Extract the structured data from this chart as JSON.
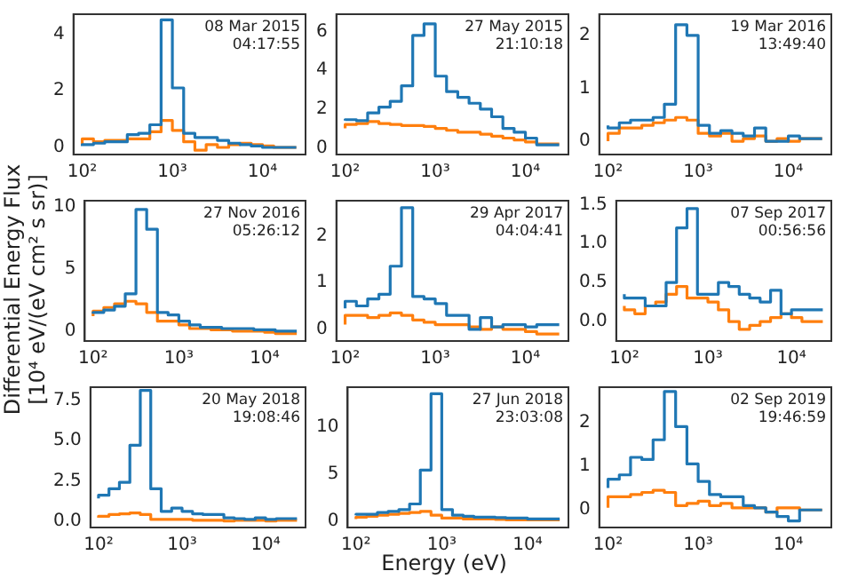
{
  "chart_data": [
    {
      "type": "step",
      "log": "x",
      "annotations": [
        "08 Mar 2015\n04:17:55"
      ],
      "x": [
        100,
        133.4,
        177.8,
        237.1,
        316.2,
        421.7,
        562.3,
        749.9,
        1000,
        1334,
        1778,
        2371,
        3162,
        4217,
        5623,
        7499,
        10000,
        13340,
        17780,
        23710
      ],
      "xlim": [
        80,
        30000
      ],
      "xticks": [
        {
          "value": 100,
          "label": "10²"
        },
        {
          "value": 1000,
          "label": "10³"
        },
        {
          "value": 10000,
          "label": "10⁴"
        }
      ],
      "ylim": [
        -0.25,
        4.7
      ],
      "yticks": [
        0,
        2,
        4
      ],
      "series": [
        {
          "color": "#1f77b4",
          "values": [
            0.05,
            0.1,
            0.15,
            0.2,
            0.2,
            0.45,
            0.5,
            0.8,
            4.5,
            2.1,
            0.5,
            0.35,
            0.35,
            0.25,
            0.15,
            0.1,
            0.05,
            0.0,
            0.0,
            0.0
          ]
        },
        {
          "color": "#ff7f0e",
          "values": [
            0.1,
            0.3,
            0.2,
            0.25,
            0.25,
            0.3,
            0.3,
            0.55,
            0.95,
            0.6,
            0.2,
            -0.1,
            0.1,
            0.0,
            0.1,
            0.15,
            0.1,
            0.05,
            0.0,
            0.0
          ]
        }
      ]
    },
    {
      "type": "step",
      "log": "x",
      "annotations": [
        "27 May 2015\n21:10:18"
      ],
      "x": [
        100,
        133.4,
        177.8,
        237.1,
        316.2,
        421.7,
        562.3,
        749.9,
        1000,
        1334,
        1778,
        2371,
        3162,
        4217,
        5623,
        7499,
        10000,
        13340,
        17780,
        23710
      ],
      "xlim": [
        80,
        30000
      ],
      "xticks": [
        {
          "value": 100,
          "label": "10²"
        },
        {
          "value": 1000,
          "label": "10³"
        },
        {
          "value": 10000,
          "label": "10⁴"
        }
      ],
      "ylim": [
        -0.35,
        6.9
      ],
      "yticks": [
        0,
        2,
        4,
        6
      ],
      "series": [
        {
          "color": "#1f77b4",
          "values": [
            1.4,
            1.45,
            1.4,
            1.8,
            2.1,
            2.4,
            3.2,
            5.8,
            6.4,
            3.7,
            2.9,
            2.6,
            2.3,
            2.0,
            1.6,
            1.0,
            0.8,
            0.5,
            0.15,
            0.15
          ]
        },
        {
          "color": "#ff7f0e",
          "values": [
            1.0,
            1.2,
            1.25,
            1.35,
            1.25,
            1.2,
            1.15,
            1.15,
            1.1,
            1.0,
            0.9,
            0.8,
            0.8,
            0.7,
            0.6,
            0.5,
            0.4,
            0.3,
            0.2,
            0.2
          ]
        }
      ]
    },
    {
      "type": "step",
      "log": "x",
      "annotations": [
        "19 Mar 2016\n13:49:40"
      ],
      "x": [
        100,
        133.4,
        177.8,
        237.1,
        316.2,
        421.7,
        562.3,
        749.9,
        1000,
        1334,
        1778,
        2371,
        3162,
        4217,
        5623,
        7499,
        10000,
        13340,
        17780,
        23710
      ],
      "xlim": [
        80,
        30000
      ],
      "xticks": [
        {
          "value": 100,
          "label": "10²"
        },
        {
          "value": 1000,
          "label": "10³"
        },
        {
          "value": 10000,
          "label": "10⁴"
        }
      ],
      "ylim": [
        -0.25,
        2.4
      ],
      "yticks": [
        0,
        1,
        2
      ],
      "series": [
        {
          "color": "#1f77b4",
          "values": [
            0.3,
            0.25,
            0.35,
            0.4,
            0.4,
            0.45,
            0.7,
            2.2,
            2.0,
            0.3,
            0.15,
            0.2,
            0.15,
            0.1,
            0.25,
            0.0,
            0.0,
            0.1,
            0.05,
            0.05
          ]
        },
        {
          "color": "#ff7f0e",
          "values": [
            0.0,
            0.15,
            0.25,
            0.25,
            0.3,
            0.35,
            0.4,
            0.45,
            0.4,
            0.15,
            0.1,
            0.15,
            0.0,
            0.05,
            0.1,
            0.0,
            0.05,
            0.0,
            0.05,
            0.05
          ]
        }
      ]
    },
    {
      "type": "step",
      "ylabel": "Differential Energy Flux\n[10⁴ eV/(eV cm² s sr)]",
      "log": "x",
      "annotations": [
        "27 Nov 2016\n05:26:12"
      ],
      "x": [
        100,
        133.4,
        177.8,
        237.1,
        316.2,
        421.7,
        562.3,
        749.9,
        1000,
        1334,
        1778,
        2371,
        3162,
        4217,
        5623,
        7499,
        10000,
        13340,
        17780,
        23710
      ],
      "xlim": [
        80,
        30000
      ],
      "xticks": [
        {
          "value": 100,
          "label": "10²"
        },
        {
          "value": 1000,
          "label": "10³"
        },
        {
          "value": 10000,
          "label": "10⁴"
        }
      ],
      "ylim": [
        -0.8,
        10.5
      ],
      "yticks": [
        0,
        5,
        10
      ],
      "series": [
        {
          "color": "#1f77b4",
          "values": [
            1.4,
            1.5,
            1.7,
            2.0,
            3.0,
            9.8,
            8.2,
            1.5,
            1.3,
            0.8,
            0.5,
            0.3,
            0.3,
            0.2,
            0.2,
            0.2,
            0.1,
            0.1,
            0.0,
            0.0
          ]
        },
        {
          "color": "#ff7f0e",
          "values": [
            1.2,
            1.6,
            1.9,
            2.2,
            2.4,
            2.2,
            1.5,
            0.8,
            0.8,
            0.5,
            0.2,
            0.2,
            0.1,
            0.1,
            0.0,
            0.0,
            0.0,
            -0.1,
            -0.2,
            -0.2
          ]
        }
      ]
    },
    {
      "type": "step",
      "log": "x",
      "annotations": [
        "29 Apr 2017\n04:04:41"
      ],
      "x": [
        100,
        133.4,
        177.8,
        237.1,
        316.2,
        421.7,
        562.3,
        749.9,
        1000,
        1334,
        1778,
        2371,
        3162,
        4217,
        5623,
        7499,
        10000,
        13340,
        17780,
        23710
      ],
      "xlim": [
        80,
        30000
      ],
      "xticks": [
        {
          "value": 100,
          "label": "10²"
        },
        {
          "value": 1000,
          "label": "10³"
        },
        {
          "value": 10000,
          "label": "10⁴"
        }
      ],
      "ylim": [
        -0.25,
        2.75
      ],
      "yticks": [
        0,
        1,
        2
      ],
      "series": [
        {
          "color": "#1f77b4",
          "values": [
            0.45,
            0.6,
            0.5,
            0.65,
            0.75,
            1.35,
            2.6,
            0.7,
            0.65,
            0.55,
            0.3,
            0.3,
            0.0,
            0.25,
            0.05,
            0.1,
            0.1,
            0.05,
            0.1,
            0.1
          ]
        },
        {
          "color": "#ff7f0e",
          "values": [
            0.1,
            0.3,
            0.3,
            0.25,
            0.3,
            0.35,
            0.3,
            0.2,
            0.15,
            0.1,
            0.1,
            0.1,
            0.05,
            0.0,
            0.05,
            0.0,
            0.0,
            -0.05,
            -0.1,
            -0.1
          ]
        }
      ]
    },
    {
      "type": "step",
      "log": "x",
      "annotations": [
        "07 Sep 2017\n00:56:56"
      ],
      "x": [
        100,
        133.4,
        177.8,
        237.1,
        316.2,
        421.7,
        562.3,
        749.9,
        1000,
        1334,
        1778,
        2371,
        3162,
        4217,
        5623,
        7499,
        10000,
        13340,
        17780,
        23710
      ],
      "xlim": [
        80,
        30000
      ],
      "xticks": [
        {
          "value": 100,
          "label": "10²"
        },
        {
          "value": 1000,
          "label": "10³"
        },
        {
          "value": 10000,
          "label": "10⁴"
        }
      ],
      "ylim": [
        -0.25,
        1.55
      ],
      "yticks": [
        {
          "value": 0,
          "label": "0.0"
        },
        {
          "value": 0.5,
          "label": "0.5"
        },
        {
          "value": 1,
          "label": "1.0"
        },
        {
          "value": 1.5,
          "label": "1.5"
        }
      ],
      "series": [
        {
          "color": "#1f77b4",
          "values": [
            0.35,
            0.3,
            0.3,
            0.2,
            0.2,
            0.5,
            1.2,
            1.45,
            0.35,
            0.35,
            0.5,
            0.45,
            0.35,
            0.3,
            0.25,
            0.4,
            0.1,
            0.15,
            0.15,
            0.15
          ]
        },
        {
          "color": "#ff7f0e",
          "values": [
            0.2,
            0.15,
            0.1,
            0.2,
            0.25,
            0.35,
            0.45,
            0.3,
            0.3,
            0.25,
            0.15,
            0.0,
            -0.1,
            -0.05,
            0.0,
            0.05,
            0.1,
            0.05,
            0.0,
            0.0
          ]
        }
      ]
    },
    {
      "type": "step",
      "log": "x",
      "annotations": [
        "20 May 2018\n19:08:46"
      ],
      "x": [
        100,
        133.4,
        177.8,
        237.1,
        316.2,
        421.7,
        562.3,
        749.9,
        1000,
        1334,
        1778,
        2371,
        3162,
        4217,
        5623,
        7499,
        10000,
        13340,
        17780,
        23710
      ],
      "xlim": [
        80,
        30000
      ],
      "xticks": [
        {
          "value": 100,
          "label": "10²"
        },
        {
          "value": 1000,
          "label": "10³"
        },
        {
          "value": 10000,
          "label": "10⁴"
        }
      ],
      "ylim": [
        -0.4,
        8.3
      ],
      "yticks": [
        {
          "value": 0,
          "label": "0.0"
        },
        {
          "value": 2.5,
          "label": "2.5"
        },
        {
          "value": 5,
          "label": "5.0"
        },
        {
          "value": 7.5,
          "label": "7.5"
        }
      ],
      "series": [
        {
          "color": "#1f77b4",
          "values": [
            1.4,
            1.6,
            2.0,
            2.4,
            4.7,
            8.1,
            2.0,
            0.6,
            0.8,
            0.6,
            0.45,
            0.4,
            0.4,
            0.2,
            0.15,
            0.1,
            0.2,
            0.1,
            0.15,
            0.15
          ]
        },
        {
          "color": "#ff7f0e",
          "values": [
            0.2,
            0.3,
            0.4,
            0.45,
            0.5,
            0.4,
            0.1,
            0.1,
            0.1,
            0.1,
            0.05,
            0.05,
            0.05,
            0.0,
            0.05,
            0.05,
            0.05,
            0.0,
            0.05,
            0.05
          ]
        }
      ]
    },
    {
      "type": "step",
      "xlabel": "Energy (eV)",
      "log": "x",
      "annotations": [
        "27 Jun 2018\n23:03:08"
      ],
      "x": [
        100,
        133.4,
        177.8,
        237.1,
        316.2,
        421.7,
        562.3,
        749.9,
        1000,
        1334,
        1778,
        2371,
        3162,
        4217,
        5623,
        7499,
        10000,
        13340,
        17780,
        23710
      ],
      "xlim": [
        80,
        30000
      ],
      "xticks": [
        {
          "value": 100,
          "label": "10²"
        },
        {
          "value": 1000,
          "label": "10³"
        },
        {
          "value": 10000,
          "label": "10⁴"
        }
      ],
      "ylim": [
        -0.7,
        14.2
      ],
      "yticks": [
        0,
        5,
        10
      ],
      "series": [
        {
          "color": "#1f77b4",
          "values": [
            0.6,
            0.7,
            0.7,
            0.9,
            1.0,
            1.2,
            1.8,
            5.4,
            13.5,
            1.2,
            0.6,
            0.5,
            0.4,
            0.4,
            0.35,
            0.3,
            0.3,
            0.2,
            0.2,
            0.2
          ]
        },
        {
          "color": "#ff7f0e",
          "values": [
            0.2,
            0.4,
            0.5,
            0.6,
            0.7,
            0.8,
            0.9,
            1.0,
            0.6,
            0.3,
            0.3,
            0.2,
            0.2,
            0.2,
            0.15,
            0.1,
            0.1,
            0.1,
            0.1,
            0.1
          ]
        }
      ]
    },
    {
      "type": "step",
      "log": "x",
      "annotations": [
        "02 Sep 2019\n19:46:59"
      ],
      "x": [
        100,
        133.4,
        177.8,
        237.1,
        316.2,
        421.7,
        562.3,
        749.9,
        1000,
        1334,
        1778,
        2371,
        3162,
        4217,
        5623,
        7499,
        10000,
        13340,
        17780,
        23710
      ],
      "xlim": [
        80,
        30000
      ],
      "xticks": [
        {
          "value": 100,
          "label": "10²"
        },
        {
          "value": 1000,
          "label": "10³"
        },
        {
          "value": 10000,
          "label": "10⁴"
        }
      ],
      "ylim": [
        -0.4,
        2.8
      ],
      "yticks": [
        0,
        1,
        2
      ],
      "series": [
        {
          "color": "#1f77b4",
          "values": [
            0.5,
            0.7,
            0.8,
            1.2,
            1.15,
            1.6,
            2.7,
            1.9,
            1.05,
            0.65,
            0.35,
            0.3,
            0.3,
            0.1,
            0.05,
            -0.05,
            -0.15,
            -0.25,
            0.0,
            0.0
          ]
        },
        {
          "color": "#ff7f0e",
          "values": [
            0.05,
            0.3,
            0.3,
            0.35,
            0.4,
            0.45,
            0.4,
            0.1,
            0.15,
            0.2,
            0.1,
            0.15,
            0.05,
            0.05,
            0.05,
            -0.05,
            0.05,
            0.05,
            0.0,
            0.0
          ]
        }
      ]
    }
  ]
}
